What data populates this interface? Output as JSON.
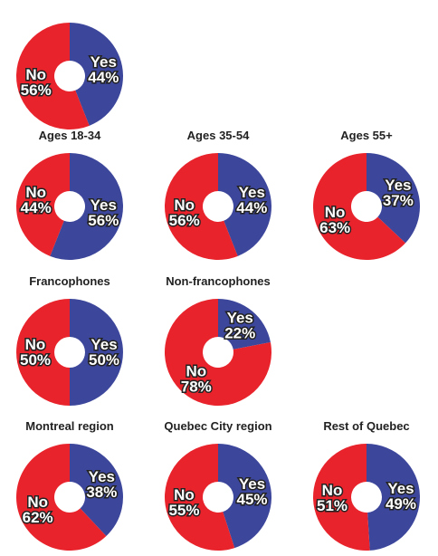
{
  "colors": {
    "yes": "#3c469b",
    "no": "#e8232b"
  },
  "chart_data": [
    {
      "type": "pie",
      "title": "",
      "labels": [
        "Yes",
        "No"
      ],
      "values": [
        44,
        56
      ]
    },
    {
      "type": "pie",
      "title": "Ages 18-34",
      "labels": [
        "Yes",
        "No"
      ],
      "values": [
        56,
        44
      ]
    },
    {
      "type": "pie",
      "title": "Ages 35-54",
      "labels": [
        "Yes",
        "No"
      ],
      "values": [
        44,
        56
      ]
    },
    {
      "type": "pie",
      "title": "Ages 55+",
      "labels": [
        "Yes",
        "No"
      ],
      "values": [
        37,
        63
      ]
    },
    {
      "type": "pie",
      "title": "Francophones",
      "labels": [
        "Yes",
        "No"
      ],
      "values": [
        50,
        50
      ]
    },
    {
      "type": "pie",
      "title": "Non-francophones",
      "labels": [
        "Yes",
        "No"
      ],
      "values": [
        22,
        78
      ]
    },
    {
      "type": "pie",
      "title": "Montreal region",
      "labels": [
        "Yes",
        "No"
      ],
      "values": [
        38,
        62
      ]
    },
    {
      "type": "pie",
      "title": "Quebec City region",
      "labels": [
        "Yes",
        "No"
      ],
      "values": [
        45,
        55
      ]
    },
    {
      "type": "pie",
      "title": "Rest of Quebec",
      "labels": [
        "Yes",
        "No"
      ],
      "values": [
        49,
        51
      ]
    }
  ]
}
